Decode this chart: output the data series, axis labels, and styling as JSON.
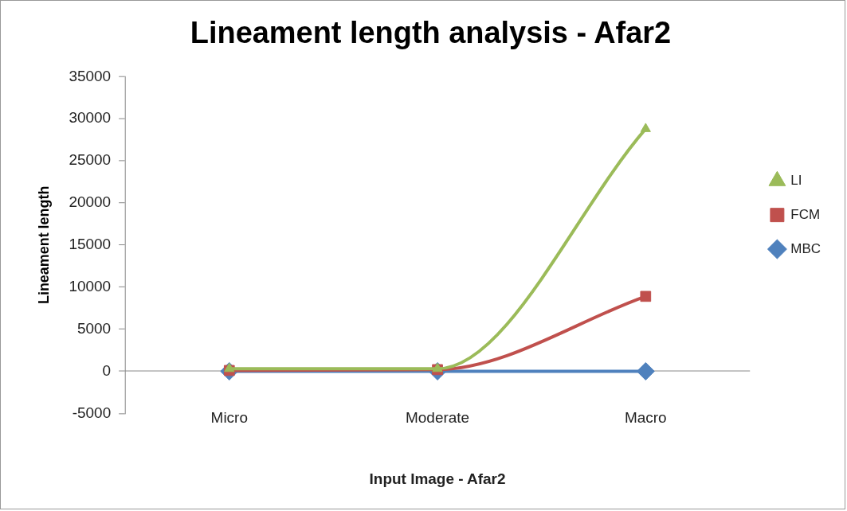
{
  "chart_data": {
    "type": "line",
    "title": "Lineament length analysis - Afar2",
    "xlabel": "Input Image - Afar2",
    "ylabel": "Lineament length",
    "categories": [
      "Micro",
      "Moderate",
      "Macro"
    ],
    "series": [
      {
        "name": "LI",
        "color": "#9bbb59",
        "marker": "triangle",
        "values": [
          300,
          300,
          28800
        ]
      },
      {
        "name": "FCM",
        "color": "#c0504d",
        "marker": "square",
        "values": [
          100,
          200,
          8900
        ]
      },
      {
        "name": "MBC",
        "color": "#4f81bd",
        "marker": "diamond",
        "values": [
          0,
          0,
          0
        ]
      }
    ],
    "ylim": [
      -5000,
      35000
    ],
    "yticks": [
      -5000,
      0,
      5000,
      10000,
      15000,
      20000,
      25000,
      30000,
      35000
    ],
    "grid": false,
    "legend": "right"
  }
}
